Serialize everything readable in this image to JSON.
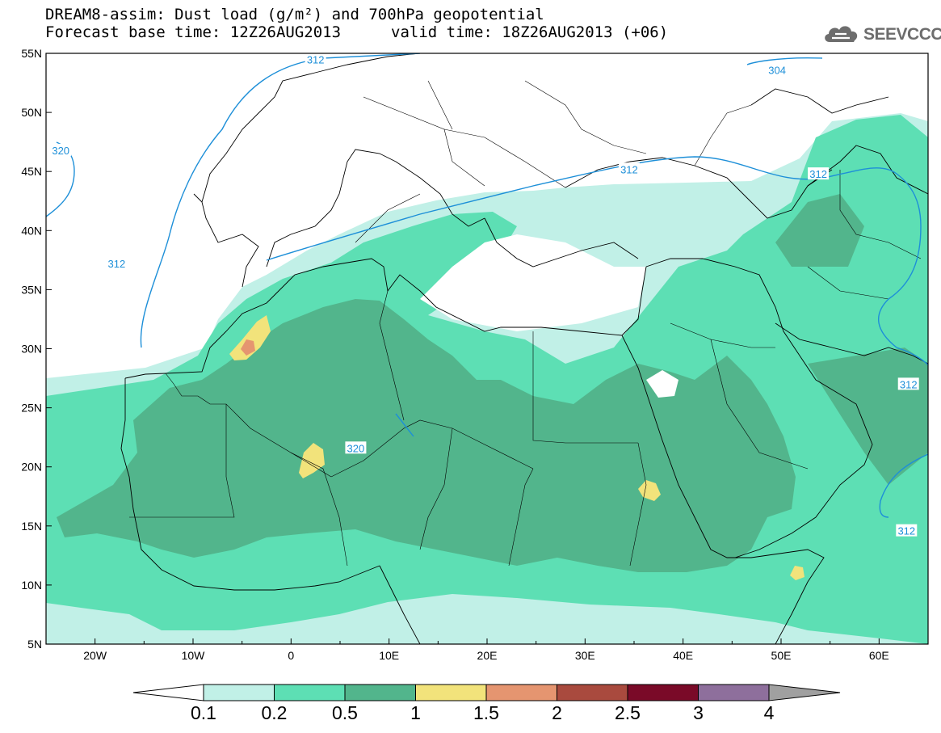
{
  "header": {
    "line1": "DREAM8-assim: Dust load (g/m²) and 700hPa geopotential",
    "line2": "Forecast base time: 12Z26AUG2013",
    "valid_time": "valid time: 18Z26AUG2013 (+06)",
    "logo_text": "SEEVCCC",
    "logo_icon": "cloud-icon"
  },
  "map": {
    "lon_range": [
      -25,
      65
    ],
    "lat_range": [
      5,
      55
    ],
    "lon_labels": [
      "20W",
      "10W",
      "0",
      "10E",
      "20E",
      "30E",
      "40E",
      "50E",
      "60E"
    ],
    "lat_labels": [
      "55N",
      "50N",
      "45N",
      "40N",
      "35N",
      "30N",
      "25N",
      "20N",
      "15N",
      "10N",
      "5N"
    ],
    "contours": [
      {
        "value": "312",
        "lon": 2.5,
        "lat": 54.5
      },
      {
        "value": "304",
        "lon": 49.6,
        "lat": 53.6
      },
      {
        "value": "320",
        "lon": -23.5,
        "lat": 46.8
      },
      {
        "value": "312",
        "lon": 34.5,
        "lat": 45.2
      },
      {
        "value": "312",
        "lon": 53.8,
        "lat": 44.8
      },
      {
        "value": "312",
        "lon": -17.8,
        "lat": 37.2
      },
      {
        "value": "320",
        "lon": 6.6,
        "lat": 21.6
      },
      {
        "value": "312",
        "lon": 63.0,
        "lat": 27.0
      },
      {
        "value": "312",
        "lon": 62.8,
        "lat": 14.6
      }
    ]
  },
  "colorbar": {
    "ticks": [
      "0.1",
      "0.2",
      "0.5",
      "1",
      "1.5",
      "2",
      "2.5",
      "3",
      "4"
    ],
    "colors": [
      "#c1f0e7",
      "#5ddfb4",
      "#52b58c",
      "#f2e37b",
      "#e59570",
      "#a94a3e",
      "#7a0a28",
      "#8e6f9c"
    ],
    "under_color": "#ffffff",
    "over_color": "#a0a0a0"
  }
}
